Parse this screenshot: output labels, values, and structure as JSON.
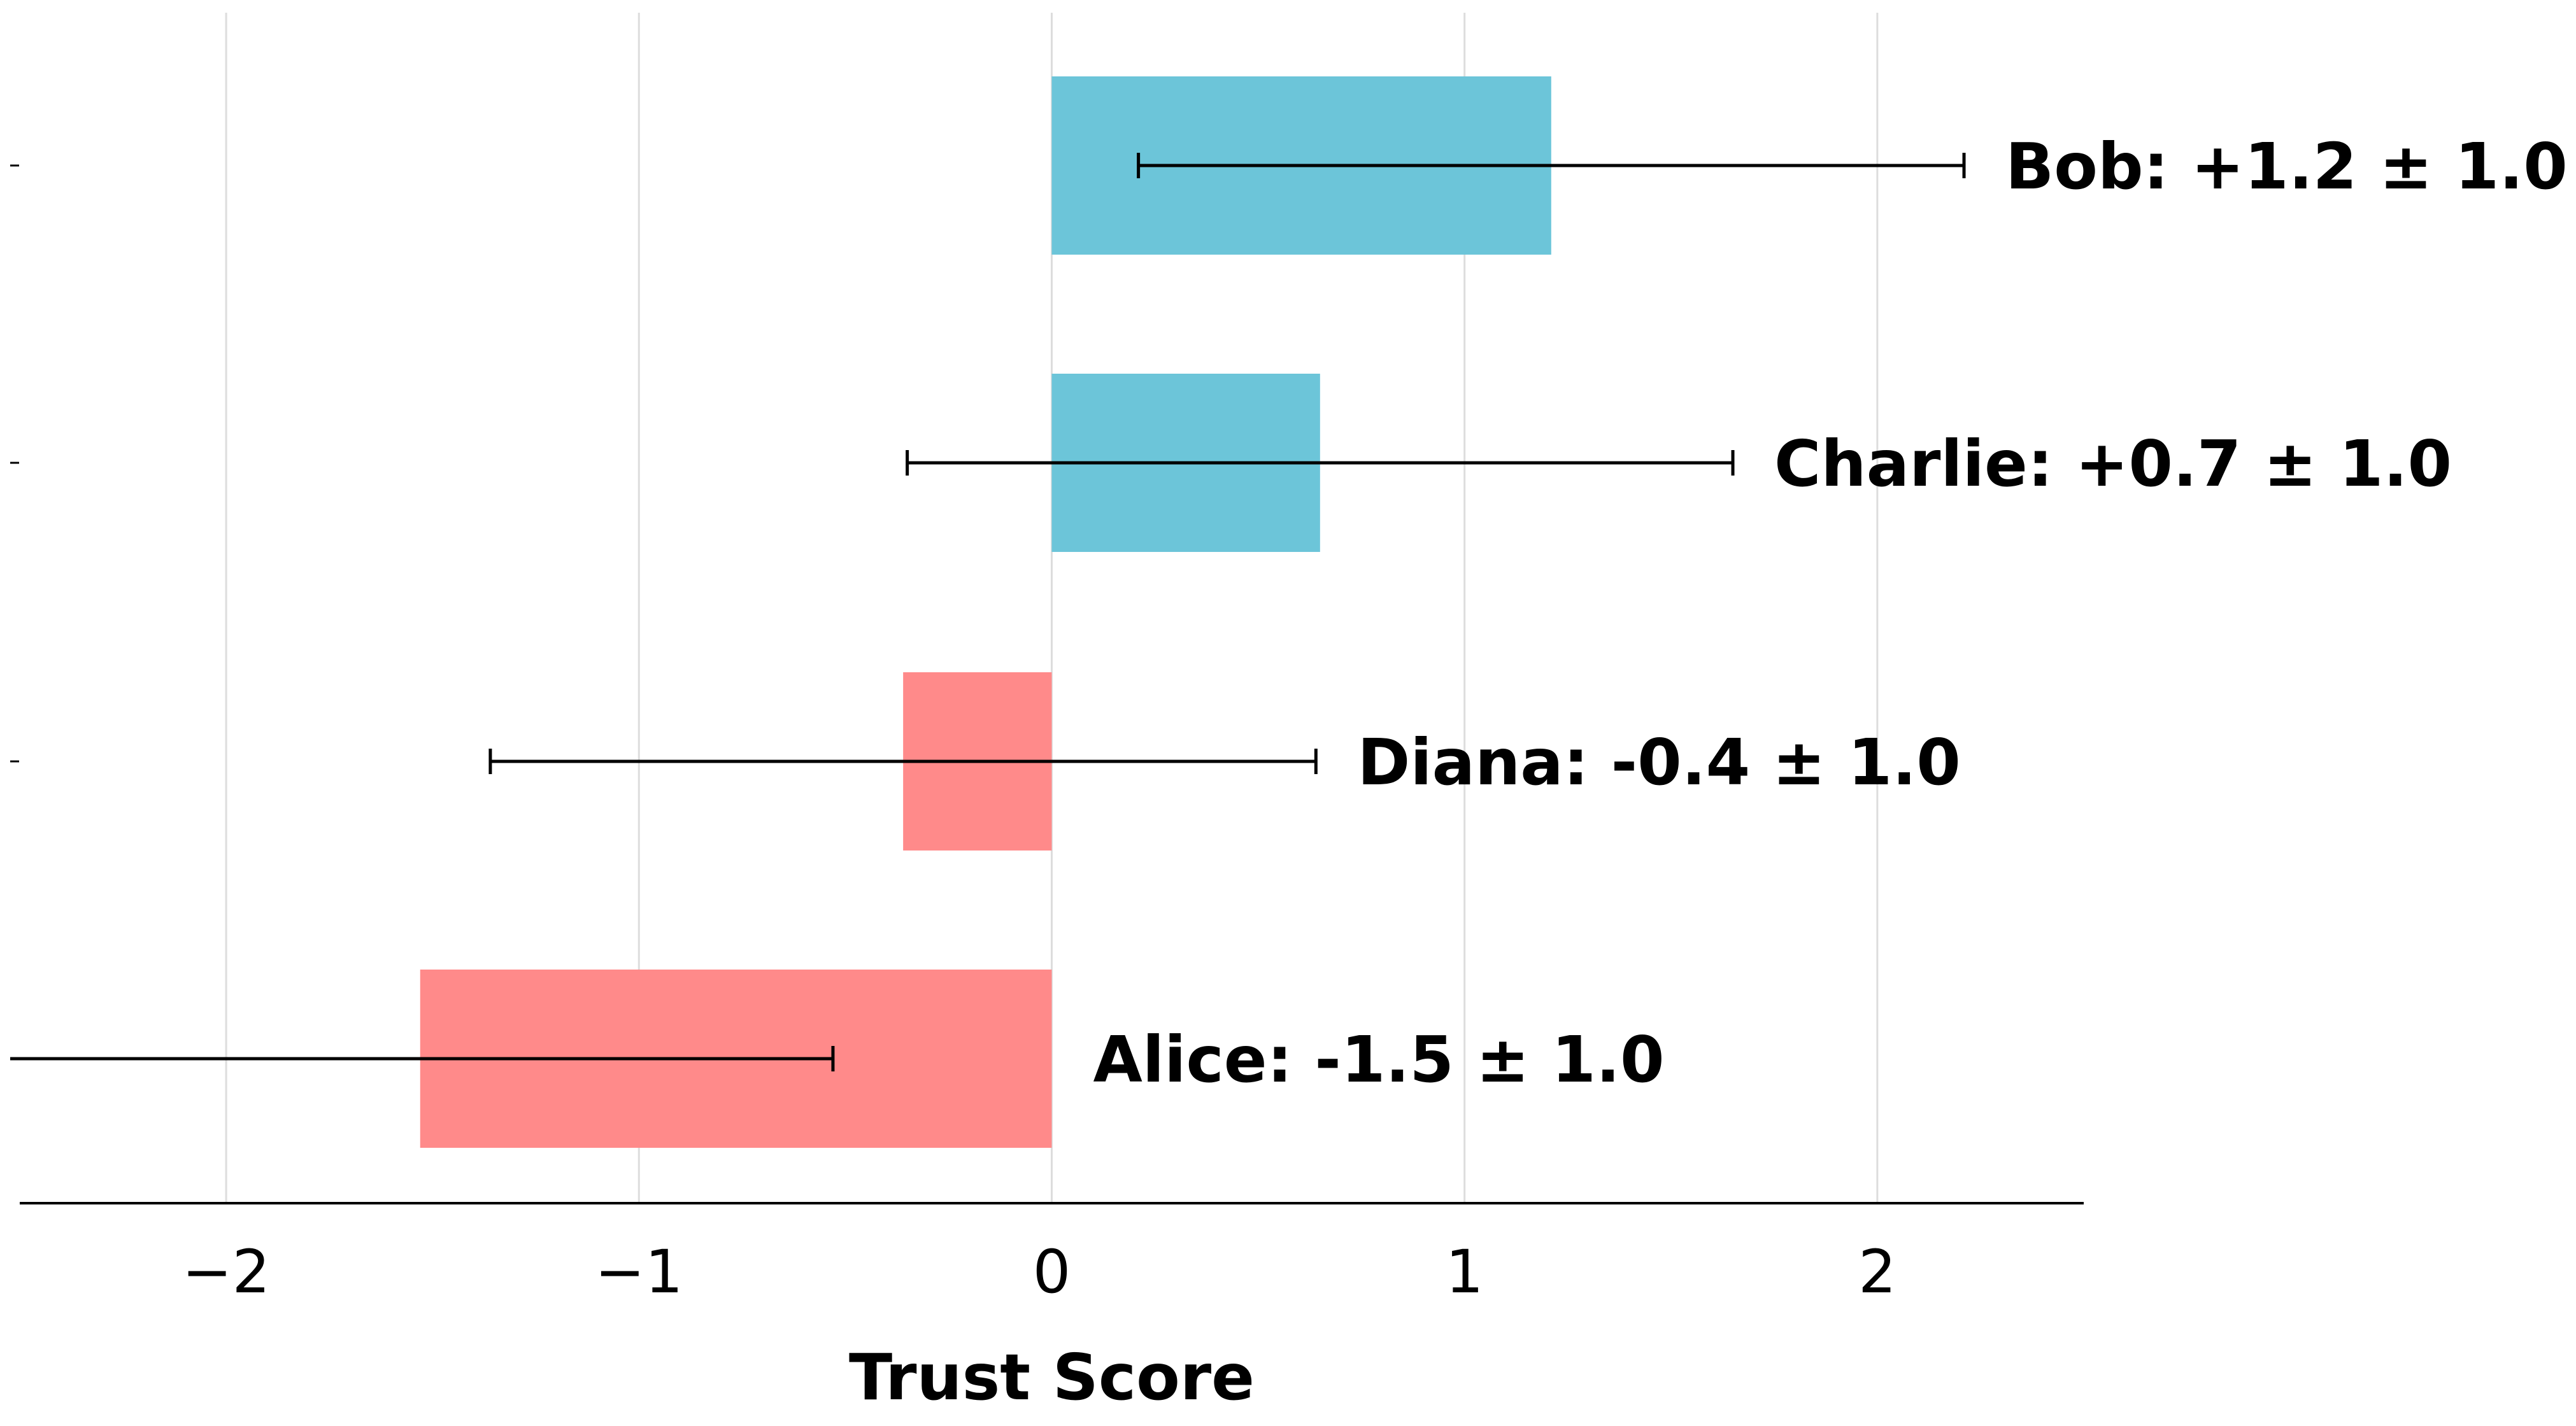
{
  "chart_data": {
    "type": "bar",
    "orientation": "horizontal",
    "xlabel": "Trust Score",
    "xlim": [
      -2.5,
      2.5
    ],
    "xticks": [
      {
        "value": -2,
        "label": "−2"
      },
      {
        "value": -1,
        "label": "−1"
      },
      {
        "value": 0,
        "label": "0"
      },
      {
        "value": 1,
        "label": "1"
      },
      {
        "value": 2,
        "label": "2"
      }
    ],
    "grid": true,
    "bars": [
      {
        "name": "Alice",
        "value": -1.53,
        "error": 1.0,
        "label": "Alice: -1.5 ± 1.0"
      },
      {
        "name": "Diana",
        "value": -0.36,
        "error": 1.0,
        "label": "Diana: -0.4 ± 1.0"
      },
      {
        "name": "Charlie",
        "value": 0.65,
        "error": 1.0,
        "label": "Charlie: +0.7 ± 1.0"
      },
      {
        "name": "Bob",
        "value": 1.21,
        "error": 1.0,
        "label": "Bob: +1.2 ± 1.0"
      }
    ],
    "colors": {
      "positive": "#6cc5d9",
      "negative": "#ff8a8a",
      "errorbar": "#000000",
      "grid": "#dddddd",
      "axis": "#000000"
    }
  }
}
